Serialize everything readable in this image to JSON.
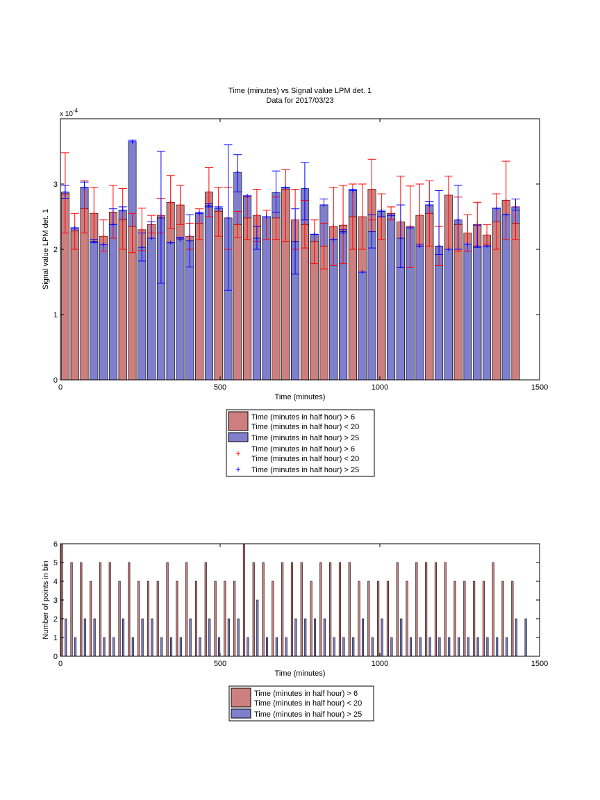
{
  "chart_data": [
    {
      "type": "bar",
      "title": "Time (minutes) vs Signal value LPM det. 1",
      "subtitle": "Data for 2017/03/23",
      "xlabel": "Time (minutes)",
      "ylabel": "Signal value LPM det. 1",
      "y_exponent_label": "x 10",
      "y_exponent_power": "-4",
      "xlim": [
        0,
        1500
      ],
      "ylim": [
        0,
        4
      ],
      "xticks": [
        0,
        500,
        1000,
        1500
      ],
      "yticks": [
        0,
        1,
        2,
        3
      ],
      "grid": false,
      "legend_position": "below",
      "legend": [
        {
          "kind": "bar",
          "color": "#cd7f7f",
          "lines": [
            "Time (minutes in half hour) > 6",
            "Time (minutes in half hour) < 20"
          ]
        },
        {
          "kind": "bar",
          "color": "#7f7fcd",
          "lines": [
            "Time (minutes in half hour) > 25"
          ]
        },
        {
          "kind": "marker",
          "color": "#ff0000",
          "lines": [
            "Time (minutes in half hour) > 6",
            "Time (minutes in half hour) < 20"
          ]
        },
        {
          "kind": "marker",
          "color": "#0000ff",
          "lines": [
            "Time (minutes in half hour) > 25"
          ]
        }
      ],
      "x": [
        15,
        45,
        75,
        105,
        135,
        165,
        195,
        225,
        255,
        285,
        315,
        345,
        375,
        405,
        435,
        465,
        495,
        525,
        555,
        585,
        615,
        645,
        675,
        705,
        735,
        765,
        795,
        825,
        855,
        885,
        915,
        945,
        975,
        1005,
        1035,
        1065,
        1095,
        1125,
        1155,
        1185,
        1215,
        1245,
        1275,
        1305,
        1335,
        1365,
        1395,
        1425
      ],
      "series": [
        {
          "name": "Time (minutes in half hour) > 6 / Time (minutes in half hour) < 20",
          "color": "#cd7f7f",
          "errorbar_color": "#ff0000",
          "values": [
            2.85,
            2.28,
            2.62,
            2.55,
            2.2,
            2.57,
            2.45,
            2.35,
            2.3,
            2.38,
            2.52,
            2.72,
            2.68,
            2.2,
            2.4,
            2.88,
            2.58,
            2.48,
            2.38,
            2.48,
            2.52,
            2.5,
            2.48,
            2.92,
            2.45,
            2.38,
            2.12,
            2.05,
            2.35,
            2.37,
            2.5,
            2.5,
            2.92,
            2.5,
            2.55,
            2.42,
            2.35,
            2.52,
            2.55,
            2.05,
            2.83,
            2.38,
            2.25,
            2.38,
            2.22,
            2.42,
            2.75,
            2.4
          ],
          "err_low": [
            2.25,
            2.0,
            2.25,
            2.15,
            1.97,
            2.17,
            2.0,
            1.95,
            1.98,
            2.25,
            2.25,
            2.32,
            2.38,
            2.0,
            2.15,
            2.5,
            2.2,
            2.0,
            2.18,
            2.15,
            2.12,
            2.15,
            2.15,
            2.12,
            2.0,
            2.02,
            1.78,
            1.7,
            1.75,
            1.78,
            2.0,
            2.0,
            2.45,
            2.15,
            2.45,
            1.72,
            1.72,
            2.05,
            2.05,
            1.75,
            2.0,
            1.97,
            1.97,
            2.05,
            2.08,
            2.0,
            2.15,
            2.15
          ],
          "err_high": [
            3.48,
            2.55,
            3.05,
            2.95,
            2.45,
            2.98,
            2.93,
            2.55,
            2.63,
            2.52,
            2.78,
            3.13,
            2.98,
            2.4,
            2.62,
            3.25,
            2.95,
            2.95,
            2.58,
            2.8,
            2.92,
            2.6,
            2.8,
            3.22,
            2.92,
            2.75,
            2.45,
            2.4,
            2.95,
            2.98,
            3.0,
            3.0,
            3.38,
            2.85,
            2.65,
            3.12,
            2.97,
            3.0,
            3.05,
            2.35,
            3.12,
            2.8,
            2.53,
            2.72,
            2.38,
            2.85,
            3.35,
            2.65
          ]
        },
        {
          "name": "Time (minutes in half hour) > 25",
          "color": "#7f7fcd",
          "errorbar_color": "#0000ff",
          "values": [
            2.88,
            2.33,
            2.95,
            2.12,
            2.07,
            2.38,
            2.6,
            3.65,
            2.03,
            2.17,
            2.48,
            2.1,
            2.15,
            2.13,
            2.55,
            2.67,
            2.63,
            2.48,
            3.18,
            2.82,
            2.17,
            2.5,
            2.87,
            2.95,
            2.12,
            2.93,
            2.23,
            2.68,
            2.15,
            2.27,
            2.9,
            1.65,
            2.27,
            2.58,
            2.52,
            2.17,
            2.33,
            2.05,
            2.68,
            2.05,
            2.0,
            2.45,
            2.08,
            2.05,
            2.05,
            2.63,
            2.53,
            2.65
          ],
          "err_low": [
            2.78,
            2.33,
            2.95,
            2.1,
            2.07,
            2.38,
            2.6,
            3.65,
            1.82,
            2.17,
            1.48,
            2.1,
            2.17,
            1.73,
            2.55,
            2.65,
            2.63,
            1.37,
            2.88,
            2.82,
            2.0,
            2.5,
            2.57,
            2.95,
            1.62,
            2.45,
            2.23,
            2.68,
            2.15,
            2.25,
            2.9,
            1.65,
            2.02,
            2.5,
            2.52,
            1.72,
            2.33,
            2.05,
            2.68,
            1.92,
            2.0,
            2.0,
            2.08,
            2.03,
            2.05,
            2.63,
            2.53,
            2.6
          ],
          "err_high": [
            2.98,
            2.33,
            3.03,
            2.15,
            2.07,
            2.62,
            2.65,
            3.67,
            2.25,
            2.42,
            3.5,
            2.1,
            2.18,
            2.53,
            2.57,
            2.7,
            2.65,
            3.6,
            3.45,
            2.82,
            2.35,
            2.5,
            3.2,
            2.95,
            2.62,
            3.33,
            2.23,
            2.77,
            2.15,
            2.3,
            2.92,
            1.65,
            2.53,
            2.6,
            2.52,
            2.68,
            2.33,
            2.08,
            2.73,
            2.9,
            2.0,
            2.98,
            2.08,
            2.37,
            2.05,
            2.63,
            2.53,
            2.77
          ]
        }
      ]
    },
    {
      "type": "bar",
      "title": "",
      "xlabel": "Time (minutes)",
      "ylabel": "Number of points in bin",
      "xlim": [
        0,
        1500
      ],
      "ylim": [
        0,
        6
      ],
      "xticks": [
        0,
        500,
        1000,
        1500
      ],
      "yticks": [
        0,
        1,
        2,
        3,
        4,
        5,
        6
      ],
      "grid": false,
      "legend_position": "below",
      "legend": [
        {
          "kind": "bar",
          "color": "#cd7f7f",
          "lines": [
            "Time (minutes in half hour) > 6",
            "Time (minutes in half hour) < 20"
          ]
        },
        {
          "kind": "bar",
          "color": "#7f7fcd",
          "lines": [
            "Time (minutes in half hour) > 25"
          ]
        }
      ],
      "x": [
        0,
        30,
        60,
        90,
        120,
        150,
        180,
        210,
        240,
        270,
        300,
        330,
        360,
        390,
        420,
        450,
        480,
        510,
        540,
        570,
        600,
        630,
        660,
        690,
        720,
        750,
        780,
        810,
        840,
        870,
        900,
        930,
        960,
        990,
        1020,
        1050,
        1080,
        1110,
        1140,
        1170,
        1200,
        1230,
        1260,
        1290,
        1320,
        1350,
        1380,
        1410,
        1440
      ],
      "series": [
        {
          "name": "Time (minutes in half hour) > 6 / Time (minutes in half hour) < 20",
          "color": "#cd7f7f",
          "values": [
            6,
            5,
            5,
            4,
            5,
            5,
            4,
            5,
            4,
            4,
            4,
            5,
            4,
            5,
            4,
            5,
            4,
            4,
            4,
            6,
            5,
            5,
            4,
            5,
            5,
            5,
            4,
            5,
            5,
            5,
            5,
            4,
            4,
            4,
            4,
            5,
            4,
            5,
            5,
            5,
            5,
            4,
            4,
            4,
            4,
            5,
            4,
            4,
            0
          ]
        },
        {
          "name": "Time (minutes in half hour) > 25",
          "color": "#7f7fcd",
          "values": [
            2,
            1,
            2,
            2,
            1,
            1,
            2,
            1,
            2,
            2,
            1,
            1,
            1,
            2,
            1,
            2,
            1,
            2,
            2,
            1,
            3,
            1,
            1,
            1,
            2,
            2,
            2,
            2,
            1,
            1,
            1,
            2,
            1,
            2,
            1,
            2,
            1,
            1,
            1,
            1,
            1,
            1,
            1,
            1,
            1,
            1,
            1,
            2,
            2
          ]
        }
      ]
    }
  ]
}
